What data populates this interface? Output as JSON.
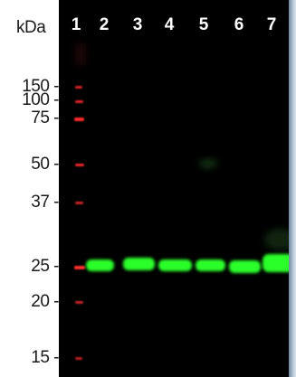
{
  "unit_label": "kDa",
  "lanes": [
    "1",
    "2",
    "3",
    "4",
    "5",
    "6",
    "7"
  ],
  "markers": [
    {
      "label": "150 -",
      "kda": 150
    },
    {
      "label": "100 -",
      "kda": 100
    },
    {
      "label": "75 -",
      "kda": 75
    },
    {
      "label": "50 -",
      "kda": 50
    },
    {
      "label": "37 -",
      "kda": 37
    },
    {
      "label": "25 -",
      "kda": 25
    },
    {
      "label": "20 -",
      "kda": 20
    },
    {
      "label": "15 -",
      "kda": 15
    }
  ],
  "colors": {
    "background": "#000000",
    "ladder": "#ff2a2a",
    "band": "#2cff2c",
    "text_dark": "#1a1a1a",
    "text_light": "#ffffff"
  },
  "band_kda": 25
}
